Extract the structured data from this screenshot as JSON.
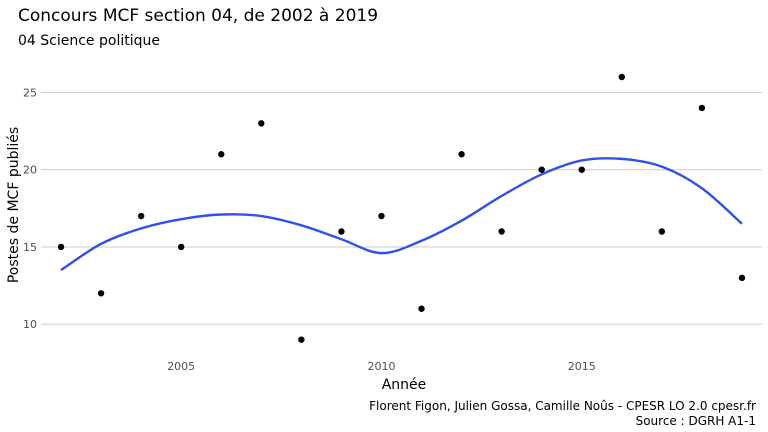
{
  "chart_data": {
    "type": "scatter",
    "title": "Concours MCF section 04, de 2002 à 2019",
    "subtitle": "04 Science politique",
    "xlabel": "Année",
    "ylabel": "Postes de MCF publiés",
    "x_ticks": [
      2005,
      2010,
      2015
    ],
    "y_ticks": [
      10,
      15,
      20,
      25
    ],
    "xlim": [
      2001.5,
      2019.5
    ],
    "ylim": [
      8.2,
      27.1
    ],
    "grid": "horizontal major",
    "series": [
      {
        "points": [
          {
            "x": 2002,
            "y": 15
          },
          {
            "x": 2003,
            "y": 12
          },
          {
            "x": 2004,
            "y": 17
          },
          {
            "x": 2005,
            "y": 15
          },
          {
            "x": 2006,
            "y": 21
          },
          {
            "x": 2007,
            "y": 23
          },
          {
            "x": 2008,
            "y": 9
          },
          {
            "x": 2009,
            "y": 16
          },
          {
            "x": 2010,
            "y": 17
          },
          {
            "x": 2011,
            "y": 11
          },
          {
            "x": 2012,
            "y": 21
          },
          {
            "x": 2013,
            "y": 16
          },
          {
            "x": 2014,
            "y": 20
          },
          {
            "x": 2015,
            "y": 20
          },
          {
            "x": 2016,
            "y": 26
          },
          {
            "x": 2017,
            "y": 16
          },
          {
            "x": 2018,
            "y": 24
          },
          {
            "x": 2019,
            "y": 13
          }
        ],
        "color": "#000000"
      }
    ],
    "smooth": {
      "color": "#3050e8",
      "points": [
        {
          "x": 2002,
          "y": 13.5
        },
        {
          "x": 2003,
          "y": 15.2
        },
        {
          "x": 2004,
          "y": 16.2
        },
        {
          "x": 2005,
          "y": 16.8
        },
        {
          "x": 2006,
          "y": 17.1
        },
        {
          "x": 2007,
          "y": 17.0
        },
        {
          "x": 2008,
          "y": 16.4
        },
        {
          "x": 2009,
          "y": 15.5
        },
        {
          "x": 2010,
          "y": 14.6
        },
        {
          "x": 2011,
          "y": 15.4
        },
        {
          "x": 2012,
          "y": 16.7
        },
        {
          "x": 2013,
          "y": 18.3
        },
        {
          "x": 2014,
          "y": 19.7
        },
        {
          "x": 2015,
          "y": 20.6
        },
        {
          "x": 2016,
          "y": 20.7
        },
        {
          "x": 2017,
          "y": 20.2
        },
        {
          "x": 2018,
          "y": 18.8
        },
        {
          "x": 2019,
          "y": 16.5
        }
      ]
    },
    "caption_line1": "Florent Figon, Julien Gossa, Camille Noûs - CPESR LO 2.0 cpesr.fr",
    "caption_line2": "Source : DGRH A1-1"
  }
}
